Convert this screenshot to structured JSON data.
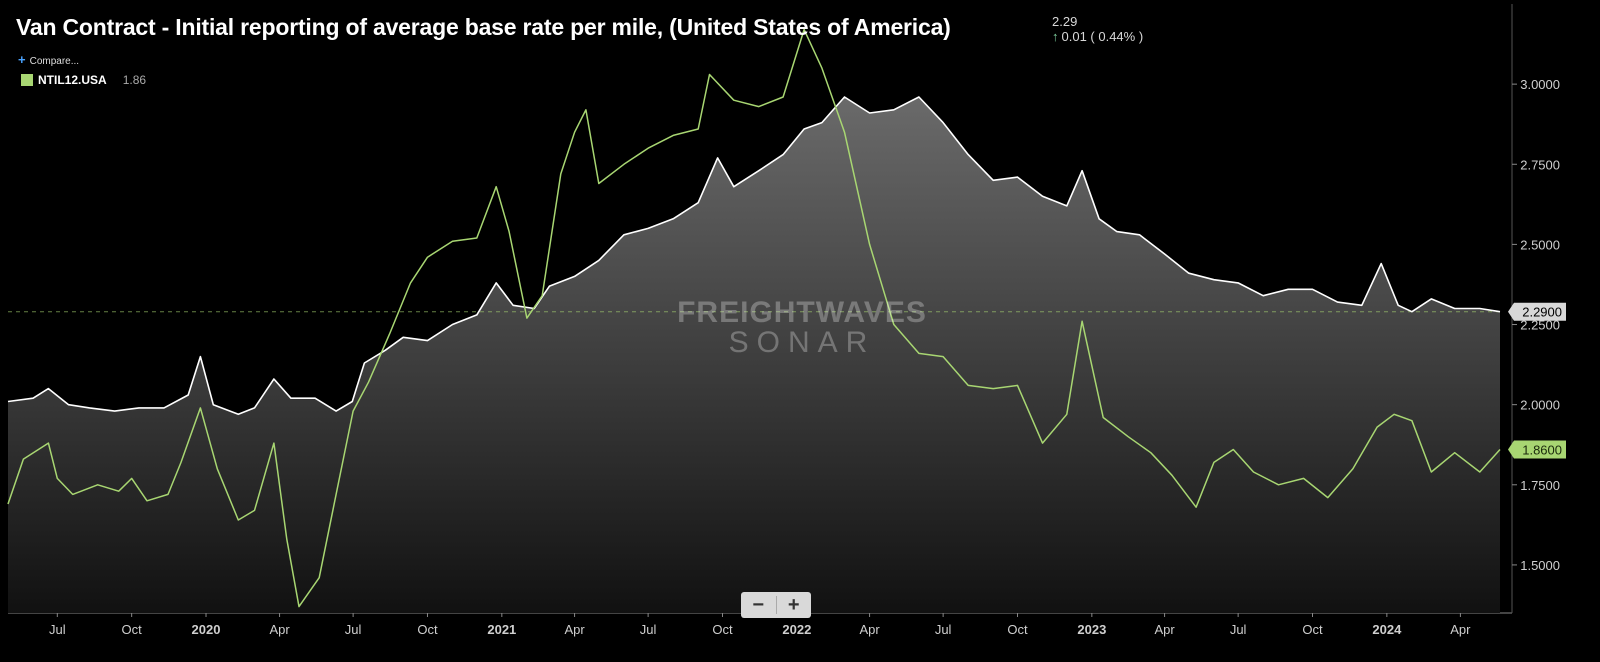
{
  "header": {
    "title": "Van Contract - Initial reporting of average base rate per mile, (United States of America)",
    "last_value": "2.29",
    "change_text": "0.01 ( 0.44% )",
    "compare_label": "Compare...",
    "legend_name": "NTIL12.USA",
    "legend_value": "1.86"
  },
  "watermark": {
    "line1": "FREIGHTWAVES",
    "line2": "SONAR"
  },
  "zoom": {
    "minus": "−",
    "plus": "+"
  },
  "colors": {
    "white_series": "#ffffff",
    "green_series": "#a8d672",
    "background": "#000000"
  },
  "chart_data": {
    "type": "area",
    "x_tick_labels": [
      "Jul",
      "Oct",
      "2020",
      "Apr",
      "Jul",
      "Oct",
      "2021",
      "Apr",
      "Jul",
      "Oct",
      "2022",
      "Apr",
      "Jul",
      "Oct",
      "2023",
      "Apr",
      "Jul",
      "Oct",
      "2024",
      "Apr"
    ],
    "y_tick_labels": [
      "1.5000",
      "1.7500",
      "2.0000",
      "2.2500",
      "2.5000",
      "2.7500",
      "3.0000"
    ],
    "ylim": [
      1.35,
      3.25
    ],
    "xlim": [
      "2019-05-01",
      "2024-05-20"
    ],
    "reference_line": 2.29,
    "series": [
      {
        "name": "Van Contract",
        "color": "#ffffff",
        "filled": true,
        "end_label": "2.2900",
        "points": [
          [
            "2019-05-01",
            2.01
          ],
          [
            "2019-06-01",
            2.02
          ],
          [
            "2019-06-20",
            2.05
          ],
          [
            "2019-07-15",
            2.0
          ],
          [
            "2019-08-10",
            1.99
          ],
          [
            "2019-09-10",
            1.98
          ],
          [
            "2019-10-10",
            1.99
          ],
          [
            "2019-11-10",
            1.99
          ],
          [
            "2019-12-10",
            2.03
          ],
          [
            "2019-12-25",
            2.15
          ],
          [
            "2020-01-10",
            2.0
          ],
          [
            "2020-02-10",
            1.97
          ],
          [
            "2020-03-01",
            1.99
          ],
          [
            "2020-03-25",
            2.08
          ],
          [
            "2020-04-15",
            2.02
          ],
          [
            "2020-05-15",
            2.02
          ],
          [
            "2020-06-10",
            1.98
          ],
          [
            "2020-06-30",
            2.01
          ],
          [
            "2020-07-05",
            2.05
          ],
          [
            "2020-07-15",
            2.13
          ],
          [
            "2020-08-10",
            2.17
          ],
          [
            "2020-09-01",
            2.21
          ],
          [
            "2020-10-01",
            2.2
          ],
          [
            "2020-11-01",
            2.25
          ],
          [
            "2020-12-01",
            2.28
          ],
          [
            "2020-12-25",
            2.38
          ],
          [
            "2021-01-15",
            2.31
          ],
          [
            "2021-02-10",
            2.3
          ],
          [
            "2021-03-01",
            2.37
          ],
          [
            "2021-04-01",
            2.4
          ],
          [
            "2021-05-01",
            2.45
          ],
          [
            "2021-06-01",
            2.53
          ],
          [
            "2021-07-01",
            2.55
          ],
          [
            "2021-08-01",
            2.58
          ],
          [
            "2021-09-01",
            2.63
          ],
          [
            "2021-09-25",
            2.77
          ],
          [
            "2021-10-15",
            2.68
          ],
          [
            "2021-11-15",
            2.73
          ],
          [
            "2021-12-15",
            2.78
          ],
          [
            "2022-01-10",
            2.86
          ],
          [
            "2022-02-01",
            2.88
          ],
          [
            "2022-03-01",
            2.96
          ],
          [
            "2022-04-01",
            2.91
          ],
          [
            "2022-05-01",
            2.92
          ],
          [
            "2022-06-01",
            2.96
          ],
          [
            "2022-07-01",
            2.88
          ],
          [
            "2022-08-01",
            2.78
          ],
          [
            "2022-09-01",
            2.7
          ],
          [
            "2022-10-01",
            2.71
          ],
          [
            "2022-11-01",
            2.65
          ],
          [
            "2022-12-01",
            2.62
          ],
          [
            "2022-12-20",
            2.73
          ],
          [
            "2023-01-10",
            2.58
          ],
          [
            "2023-02-01",
            2.54
          ],
          [
            "2023-03-01",
            2.53
          ],
          [
            "2023-04-01",
            2.47
          ],
          [
            "2023-05-01",
            2.41
          ],
          [
            "2023-06-01",
            2.39
          ],
          [
            "2023-07-01",
            2.38
          ],
          [
            "2023-08-01",
            2.34
          ],
          [
            "2023-09-01",
            2.36
          ],
          [
            "2023-10-01",
            2.36
          ],
          [
            "2023-11-01",
            2.32
          ],
          [
            "2023-12-01",
            2.31
          ],
          [
            "2023-12-25",
            2.44
          ],
          [
            "2024-01-15",
            2.31
          ],
          [
            "2024-02-01",
            2.29
          ],
          [
            "2024-02-25",
            2.33
          ],
          [
            "2024-03-25",
            2.3
          ],
          [
            "2024-04-25",
            2.3
          ],
          [
            "2024-05-20",
            2.29
          ]
        ]
      },
      {
        "name": "NTIL12.USA",
        "color": "#a8d672",
        "filled": false,
        "end_label": "1.8600",
        "points": [
          [
            "2019-05-01",
            1.69
          ],
          [
            "2019-05-20",
            1.83
          ],
          [
            "2019-06-20",
            1.88
          ],
          [
            "2019-07-01",
            1.77
          ],
          [
            "2019-07-20",
            1.72
          ],
          [
            "2019-08-20",
            1.75
          ],
          [
            "2019-09-15",
            1.73
          ],
          [
            "2019-10-01",
            1.77
          ],
          [
            "2019-10-20",
            1.7
          ],
          [
            "2019-11-15",
            1.72
          ],
          [
            "2019-12-01",
            1.82
          ],
          [
            "2019-12-25",
            1.99
          ],
          [
            "2020-01-15",
            1.8
          ],
          [
            "2020-02-10",
            1.64
          ],
          [
            "2020-03-01",
            1.67
          ],
          [
            "2020-03-25",
            1.88
          ],
          [
            "2020-04-10",
            1.58
          ],
          [
            "2020-04-25",
            1.37
          ],
          [
            "2020-05-20",
            1.46
          ],
          [
            "2020-06-10",
            1.72
          ],
          [
            "2020-07-01",
            1.98
          ],
          [
            "2020-07-20",
            2.07
          ],
          [
            "2020-08-15",
            2.22
          ],
          [
            "2020-09-10",
            2.38
          ],
          [
            "2020-10-01",
            2.46
          ],
          [
            "2020-11-01",
            2.51
          ],
          [
            "2020-12-01",
            2.52
          ],
          [
            "2020-12-25",
            2.68
          ],
          [
            "2021-01-10",
            2.54
          ],
          [
            "2021-02-01",
            2.27
          ],
          [
            "2021-02-20",
            2.34
          ],
          [
            "2021-03-15",
            2.72
          ],
          [
            "2021-04-01",
            2.85
          ],
          [
            "2021-04-15",
            2.92
          ],
          [
            "2021-05-01",
            2.69
          ],
          [
            "2021-06-01",
            2.75
          ],
          [
            "2021-07-01",
            2.8
          ],
          [
            "2021-08-01",
            2.84
          ],
          [
            "2021-09-01",
            2.86
          ],
          [
            "2021-09-15",
            3.03
          ],
          [
            "2021-10-15",
            2.95
          ],
          [
            "2021-11-15",
            2.93
          ],
          [
            "2021-12-15",
            2.96
          ],
          [
            "2022-01-10",
            3.17
          ],
          [
            "2022-02-01",
            3.05
          ],
          [
            "2022-03-01",
            2.85
          ],
          [
            "2022-04-01",
            2.5
          ],
          [
            "2022-05-01",
            2.25
          ],
          [
            "2022-06-01",
            2.16
          ],
          [
            "2022-07-01",
            2.15
          ],
          [
            "2022-08-01",
            2.06
          ],
          [
            "2022-09-01",
            2.05
          ],
          [
            "2022-10-01",
            2.06
          ],
          [
            "2022-11-01",
            1.88
          ],
          [
            "2022-12-01",
            1.97
          ],
          [
            "2022-12-20",
            2.26
          ],
          [
            "2023-01-15",
            1.96
          ],
          [
            "2023-02-15",
            1.9
          ],
          [
            "2023-03-15",
            1.85
          ],
          [
            "2023-04-10",
            1.78
          ],
          [
            "2023-05-10",
            1.68
          ],
          [
            "2023-06-01",
            1.82
          ],
          [
            "2023-06-25",
            1.86
          ],
          [
            "2023-07-20",
            1.79
          ],
          [
            "2023-08-20",
            1.75
          ],
          [
            "2023-09-20",
            1.77
          ],
          [
            "2023-10-20",
            1.71
          ],
          [
            "2023-11-20",
            1.8
          ],
          [
            "2023-12-20",
            1.93
          ],
          [
            "2024-01-10",
            1.97
          ],
          [
            "2024-02-01",
            1.95
          ],
          [
            "2024-02-25",
            1.79
          ],
          [
            "2024-03-25",
            1.85
          ],
          [
            "2024-04-25",
            1.79
          ],
          [
            "2024-05-20",
            1.86
          ]
        ]
      }
    ]
  }
}
